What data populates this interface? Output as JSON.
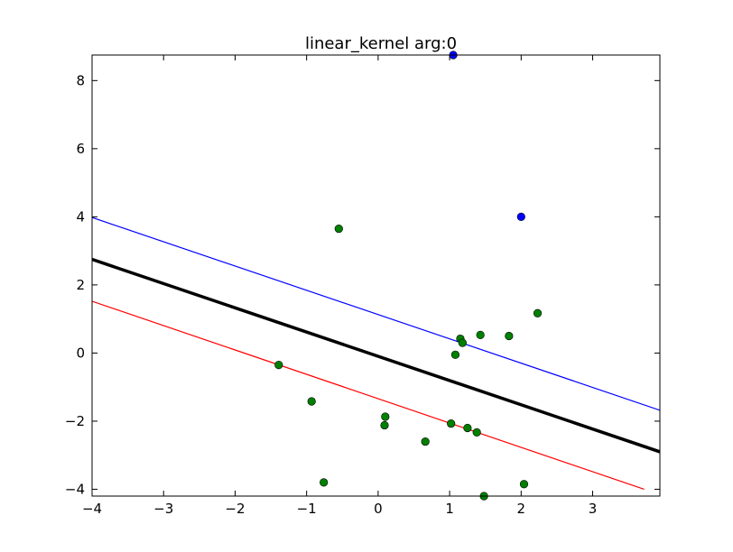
{
  "chart_data": {
    "type": "scatter",
    "title": "linear_kernel arg:0",
    "xlabel": "",
    "ylabel": "",
    "xlim": [
      -4,
      3.94
    ],
    "ylim": [
      -4.2,
      8.75
    ],
    "x_ticks": [
      -4,
      -3,
      -2,
      -1,
      0,
      1,
      2,
      3
    ],
    "x_tick_labels": [
      "−4",
      "−3",
      "−2",
      "−1",
      "0",
      "1",
      "2",
      "3"
    ],
    "y_ticks": [
      -4,
      -2,
      0,
      2,
      4,
      6,
      8
    ],
    "y_tick_labels": [
      "−4",
      "−2",
      "0",
      "2",
      "4",
      "6",
      "8"
    ],
    "grid": false,
    "series": [
      {
        "kind": "points",
        "color": "#0000ff",
        "x": [
          1.05,
          2.0
        ],
        "y": [
          8.75,
          4.0
        ]
      },
      {
        "kind": "points",
        "color": "#008000",
        "x": [
          -0.55,
          2.23,
          1.43,
          1.83,
          1.15,
          1.18,
          1.08,
          -1.39,
          -0.93,
          0.1,
          0.09,
          1.02,
          1.25,
          1.38,
          0.66,
          -0.76,
          2.04,
          1.48
        ],
        "y": [
          3.65,
          1.17,
          0.53,
          0.5,
          0.42,
          0.3,
          -0.05,
          -0.35,
          -1.42,
          -1.87,
          -2.12,
          -2.07,
          -2.2,
          -2.33,
          -2.6,
          -3.8,
          -3.85,
          -4.2
        ]
      },
      {
        "kind": "line",
        "color": "#000000",
        "width": 3.5,
        "x": [
          -4.0,
          3.94
        ],
        "y": [
          2.75,
          -2.9
        ]
      },
      {
        "kind": "line",
        "color": "#0000ff",
        "width": 1.2,
        "x": [
          -4.0,
          3.94
        ],
        "y": [
          3.98,
          -1.68
        ]
      },
      {
        "kind": "line",
        "color": "#ff0000",
        "width": 1.2,
        "x": [
          -4.0,
          3.72
        ],
        "y": [
          1.52,
          -4.0
        ]
      }
    ]
  }
}
